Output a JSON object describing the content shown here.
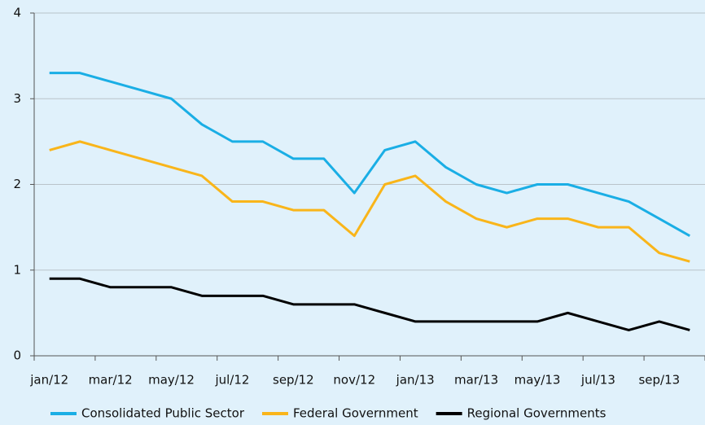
{
  "chart_data": {
    "type": "line",
    "categories": [
      "jan/12",
      null,
      "mar/12",
      null,
      "may/12",
      null,
      "jul/12",
      null,
      "sep/12",
      null,
      "nov/12",
      null,
      "jan/13",
      null,
      "mar/13",
      null,
      "may/13",
      null,
      "jul/13",
      null,
      "sep/13",
      null
    ],
    "series": [
      {
        "name": "Consolidated Public Sector",
        "color": "#1aaee5",
        "values": [
          3.3,
          3.3,
          3.2,
          3.1,
          3.0,
          2.7,
          2.5,
          2.5,
          2.3,
          2.3,
          1.9,
          2.4,
          2.5,
          2.2,
          2.0,
          1.9,
          2.0,
          2.0,
          1.9,
          1.8,
          1.6,
          1.4
        ]
      },
      {
        "name": "Federal Government",
        "color": "#f9b51a",
        "values": [
          2.4,
          2.5,
          2.4,
          2.3,
          2.2,
          2.1,
          1.8,
          1.8,
          1.7,
          1.7,
          1.4,
          2.0,
          2.1,
          1.8,
          1.6,
          1.5,
          1.6,
          1.6,
          1.5,
          1.5,
          1.2,
          1.1
        ]
      },
      {
        "name": "Regional Governments",
        "color": "#000000",
        "values": [
          0.9,
          0.9,
          0.8,
          0.8,
          0.8,
          0.7,
          0.7,
          0.7,
          0.6,
          0.6,
          0.6,
          0.5,
          0.4,
          0.4,
          0.4,
          0.4,
          0.4,
          0.5,
          0.4,
          0.3,
          0.4,
          0.3
        ]
      }
    ],
    "ylim": [
      0,
      4
    ],
    "yticks": [
      0,
      1,
      2,
      3,
      4
    ],
    "grid": true,
    "legend": "bottom"
  }
}
